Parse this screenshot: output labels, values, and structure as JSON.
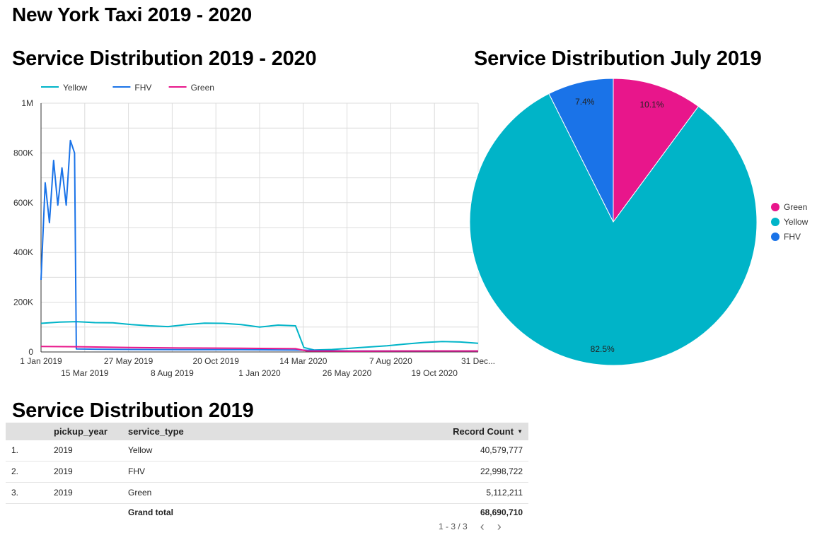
{
  "page": {
    "title": "New York Taxi 2019 - 2020"
  },
  "line_section": {
    "title": "Service Distribution 2019 - 2020"
  },
  "pie_section": {
    "title": "Service Distribution July 2019"
  },
  "table_section": {
    "title": "Service Distribution 2019",
    "columns": {
      "year": "pickup_year",
      "type": "service_type",
      "count": "Record Count"
    },
    "rows": [
      {
        "num": "1.",
        "year": "2019",
        "type": "Yellow",
        "count": "40,579,777"
      },
      {
        "num": "2.",
        "year": "2019",
        "type": "FHV",
        "count": "22,998,722"
      },
      {
        "num": "3.",
        "year": "2019",
        "type": "Green",
        "count": "5,112,211"
      }
    ],
    "grand_total_label": "Grand total",
    "grand_total_value": "68,690,710",
    "pagination": "1 - 3 / 3"
  },
  "colors": {
    "yellow": "#00b4c8",
    "fhv": "#1a73e8",
    "green": "#e8168b",
    "grid": "#dcdcdc"
  },
  "chart_data": [
    {
      "type": "line",
      "title": "Service Distribution 2019 - 2020",
      "legend": [
        "Yellow",
        "FHV",
        "Green"
      ],
      "legend_position": "top-left",
      "ylim": [
        0,
        1000000
      ],
      "y_ticks": [
        "0",
        "200K",
        "400K",
        "600K",
        "800K",
        "1M"
      ],
      "y_tick_values": [
        0,
        200000,
        400000,
        600000,
        800000,
        1000000
      ],
      "x_range": [
        "2019-01-01",
        "2020-12-31"
      ],
      "x_ticks_row1": [
        {
          "label": "1 Jan 2019",
          "date": "2019-01-01"
        },
        {
          "label": "27 May 2019",
          "date": "2019-05-27"
        },
        {
          "label": "20 Oct 2019",
          "date": "2019-10-20"
        },
        {
          "label": "14 Mar 2020",
          "date": "2020-03-14"
        },
        {
          "label": "7 Aug 2020",
          "date": "2020-08-07"
        },
        {
          "label": "31 Dec...",
          "date": "2020-12-31"
        }
      ],
      "x_ticks_row2": [
        {
          "label": "15 Mar 2019",
          "date": "2019-03-15"
        },
        {
          "label": "8 Aug 2019",
          "date": "2019-08-08"
        },
        {
          "label": "1 Jan 2020",
          "date": "2020-01-01"
        },
        {
          "label": "26 May 2020",
          "date": "2020-05-26"
        },
        {
          "label": "19 Oct 2020",
          "date": "2020-10-19"
        }
      ],
      "grid": true,
      "series": [
        {
          "name": "Yellow",
          "color": "#00b4c8",
          "x": [
            "2019-01-01",
            "2019-02-01",
            "2019-03-01",
            "2019-04-01",
            "2019-05-01",
            "2019-06-01",
            "2019-07-01",
            "2019-08-01",
            "2019-09-01",
            "2019-10-01",
            "2019-11-01",
            "2019-12-01",
            "2020-01-01",
            "2020-02-01",
            "2020-03-01",
            "2020-03-15",
            "2020-04-01",
            "2020-05-01",
            "2020-06-01",
            "2020-07-01",
            "2020-08-01",
            "2020-09-01",
            "2020-10-01",
            "2020-11-01",
            "2020-12-01",
            "2020-12-31"
          ],
          "y": [
            115000,
            120000,
            122000,
            118000,
            117000,
            110000,
            105000,
            102000,
            110000,
            116000,
            115000,
            110000,
            100000,
            108000,
            105000,
            18000,
            8000,
            10000,
            15000,
            20000,
            25000,
            32000,
            38000,
            42000,
            40000,
            35000
          ]
        },
        {
          "name": "FHV",
          "color": "#1a73e8",
          "x": [
            "2019-01-01",
            "2019-01-08",
            "2019-01-15",
            "2019-01-22",
            "2019-01-29",
            "2019-02-05",
            "2019-02-12",
            "2019-02-19",
            "2019-02-26",
            "2019-03-01",
            "2019-04-01",
            "2019-06-01",
            "2019-09-01",
            "2019-12-01",
            "2020-03-01",
            "2020-06-01",
            "2020-09-01",
            "2020-12-31"
          ],
          "y": [
            290000,
            680000,
            520000,
            770000,
            590000,
            740000,
            590000,
            850000,
            800000,
            12000,
            11000,
            10000,
            9000,
            9000,
            8000,
            4000,
            4000,
            4000
          ]
        },
        {
          "name": "Green",
          "color": "#e8168b",
          "x": [
            "2019-01-01",
            "2019-03-01",
            "2019-06-01",
            "2019-09-01",
            "2019-12-01",
            "2020-03-01",
            "2020-03-20",
            "2020-06-01",
            "2020-09-01",
            "2020-12-31"
          ],
          "y": [
            22000,
            21000,
            18000,
            16000,
            15000,
            13000,
            4000,
            3000,
            4000,
            4000
          ]
        }
      ]
    },
    {
      "type": "pie",
      "title": "Service Distribution July 2019",
      "legend_position": "right",
      "slices": [
        {
          "label": "Green",
          "value": 10.1,
          "display": "10.1%",
          "color": "#e8168b"
        },
        {
          "label": "Yellow",
          "value": 82.5,
          "display": "82.5%",
          "color": "#00b4c8"
        },
        {
          "label": "FHV",
          "value": 7.4,
          "display": "7.4%",
          "color": "#1a73e8"
        }
      ]
    }
  ]
}
